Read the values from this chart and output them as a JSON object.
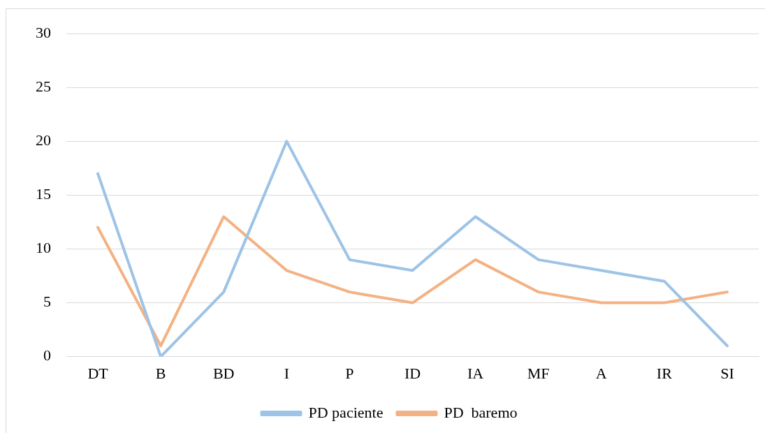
{
  "chart_data": {
    "type": "line",
    "categories": [
      "DT",
      "B",
      "BD",
      "I",
      "P",
      "ID",
      "IA",
      "MF",
      "A",
      "IR",
      "SI"
    ],
    "series": [
      {
        "name": "PD paciente",
        "color": "#9dc3e6",
        "values": [
          17,
          0,
          6,
          20,
          9,
          8,
          13,
          9,
          8,
          7,
          1
        ]
      },
      {
        "name": "PD  baremo",
        "color": "#f4b183",
        "values": [
          12,
          1,
          13,
          8,
          6,
          5,
          9,
          6,
          5,
          5,
          6
        ]
      }
    ],
    "ylim": [
      0,
      30
    ],
    "yticks": [
      0,
      5,
      10,
      15,
      20,
      25,
      30
    ],
    "grid": "y",
    "legend": "bottom",
    "marker": "none",
    "line_style": "solid"
  }
}
